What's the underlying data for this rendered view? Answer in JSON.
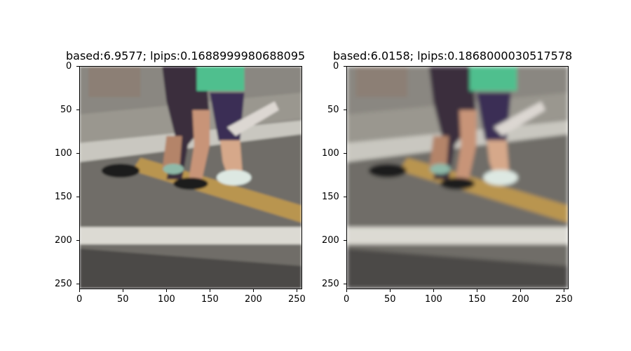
{
  "panels": [
    {
      "title": "based:6.9577; lpips:0.1688999980688095",
      "image_desc": "photo-left",
      "x_ticks": [
        "0",
        "50",
        "100",
        "150",
        "200",
        "250"
      ],
      "y_ticks": [
        "0",
        "50",
        "100",
        "150",
        "200",
        "250"
      ]
    },
    {
      "title": "based:6.0158; lpips:0.1868000030517578",
      "image_desc": "photo-right",
      "x_ticks": [
        "0",
        "50",
        "100",
        "150",
        "200",
        "250"
      ],
      "y_ticks": [
        "0",
        "50",
        "100",
        "150",
        "200",
        "250"
      ]
    }
  ]
}
